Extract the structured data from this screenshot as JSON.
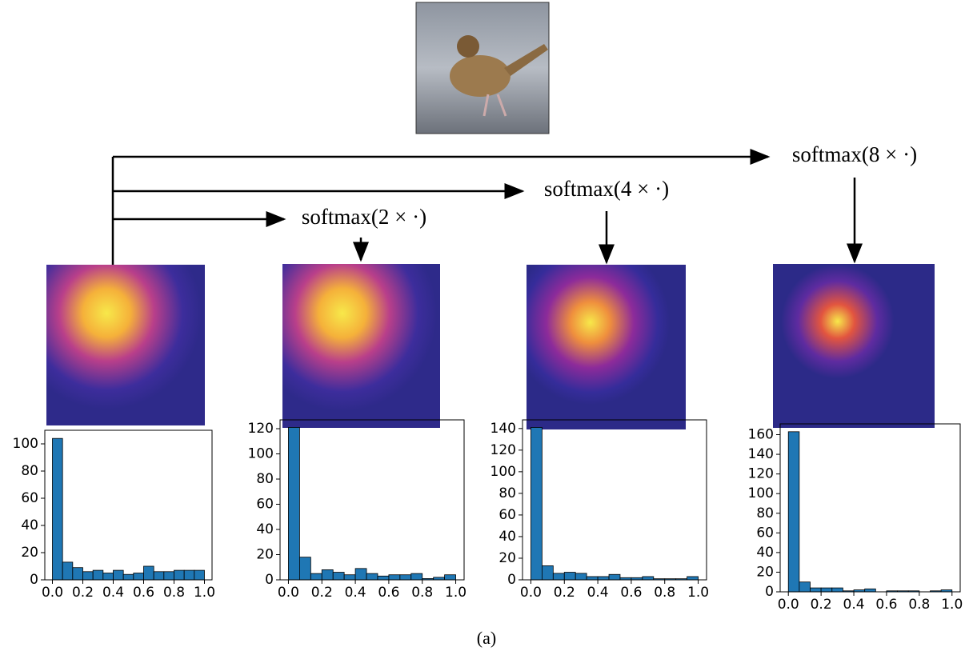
{
  "labels": [
    "softmax(2 × ·)",
    "softmax(4 × ·)",
    "softmax(8 × ·)"
  ],
  "caption": "(a)",
  "chart_data": [
    {
      "type": "histogram",
      "bins": [
        0,
        0.0667,
        0.1333,
        0.2,
        0.2667,
        0.3333,
        0.4,
        0.4667,
        0.5333,
        0.6,
        0.6667,
        0.7333,
        0.8,
        0.8667,
        0.9333,
        1
      ],
      "values": [
        104,
        13,
        9,
        6,
        7,
        5,
        7,
        4,
        5,
        10,
        6,
        6,
        7,
        7,
        7
      ],
      "color": "#1f77b4",
      "xlim": [
        -0.05,
        1.05
      ],
      "ylim": [
        0,
        110
      ],
      "xticks": [
        {
          "value": 0,
          "label": "0.0"
        },
        {
          "value": 0.2,
          "label": "0.2"
        },
        {
          "value": 0.4,
          "label": "0.4"
        },
        {
          "value": 0.6,
          "label": "0.6"
        },
        {
          "value": 0.8,
          "label": "0.8"
        },
        {
          "value": 1,
          "label": "1.0"
        }
      ],
      "yticks": [
        0,
        20,
        40,
        60,
        80,
        100
      ]
    },
    {
      "type": "histogram",
      "bins": [
        0,
        0.0667,
        0.1333,
        0.2,
        0.2667,
        0.3333,
        0.4,
        0.4667,
        0.5333,
        0.6,
        0.6667,
        0.7333,
        0.8,
        0.8667,
        0.9333,
        1
      ],
      "values": [
        121,
        18,
        5,
        8,
        6,
        4,
        9,
        5,
        3,
        4,
        4,
        5,
        1,
        2,
        4
      ],
      "color": "#1f77b4",
      "xlim": [
        -0.05,
        1.05
      ],
      "ylim": [
        0,
        127
      ],
      "xticks": [
        {
          "value": 0,
          "label": "0.0"
        },
        {
          "value": 0.2,
          "label": "0.2"
        },
        {
          "value": 0.4,
          "label": "0.4"
        },
        {
          "value": 0.6,
          "label": "0.6"
        },
        {
          "value": 0.8,
          "label": "0.8"
        },
        {
          "value": 1,
          "label": "1.0"
        }
      ],
      "yticks": [
        0,
        20,
        40,
        60,
        80,
        100,
        120
      ]
    },
    {
      "type": "histogram",
      "bins": [
        0,
        0.0667,
        0.1333,
        0.2,
        0.2667,
        0.3333,
        0.4,
        0.4667,
        0.5333,
        0.6,
        0.6667,
        0.7333,
        0.8,
        0.8667,
        0.9333,
        1
      ],
      "values": [
        141,
        13,
        6,
        7,
        6,
        3,
        3,
        5,
        2,
        2,
        3,
        1,
        1,
        1,
        3
      ],
      "color": "#1f77b4",
      "xlim": [
        -0.05,
        1.05
      ],
      "ylim": [
        0,
        148
      ],
      "xticks": [
        {
          "value": 0,
          "label": "0.0"
        },
        {
          "value": 0.2,
          "label": "0.2"
        },
        {
          "value": 0.4,
          "label": "0.4"
        },
        {
          "value": 0.6,
          "label": "0.6"
        },
        {
          "value": 0.8,
          "label": "0.8"
        },
        {
          "value": 1,
          "label": "1.0"
        }
      ],
      "yticks": [
        0,
        20,
        40,
        60,
        80,
        100,
        120,
        140
      ]
    },
    {
      "type": "histogram",
      "bins": [
        0,
        0.0667,
        0.1333,
        0.2,
        0.2667,
        0.3333,
        0.4,
        0.4667,
        0.5333,
        0.6,
        0.6667,
        0.7333,
        0.8,
        0.8667,
        0.9333,
        1
      ],
      "values": [
        163,
        10,
        4,
        4,
        4,
        1,
        2,
        3,
        0,
        1,
        1,
        1,
        0,
        1,
        2
      ],
      "color": "#1f77b4",
      "xlim": [
        -0.05,
        1.05
      ],
      "ylim": [
        0,
        171
      ],
      "xticks": [
        {
          "value": 0,
          "label": "0.0"
        },
        {
          "value": 0.2,
          "label": "0.2"
        },
        {
          "value": 0.4,
          "label": "0.4"
        },
        {
          "value": 0.6,
          "label": "0.6"
        },
        {
          "value": 0.8,
          "label": "0.8"
        },
        {
          "value": 1,
          "label": "1.0"
        }
      ],
      "yticks": [
        0,
        20,
        40,
        60,
        80,
        100,
        120,
        140,
        160
      ]
    }
  ]
}
